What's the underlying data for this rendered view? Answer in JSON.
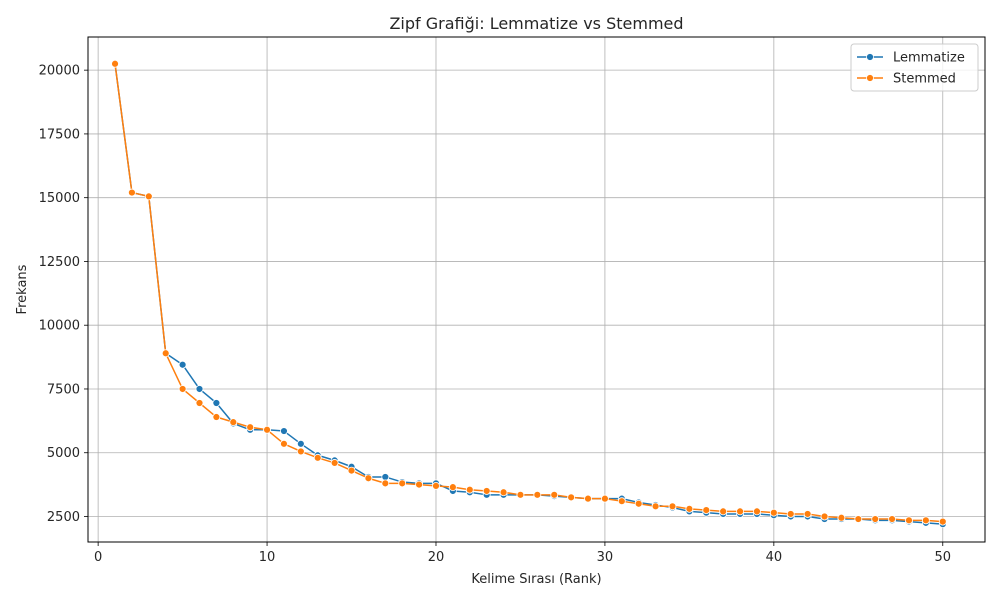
{
  "chart_data": {
    "type": "line",
    "title": "Zipf Grafiği: Lemmatize vs Stemmed",
    "xlabel": "Kelime Sırası (Rank)",
    "ylabel": "Frekans",
    "xlim": [
      -0.6,
      52.5
    ],
    "ylim": [
      1500,
      21300
    ],
    "xticks": [
      0,
      10,
      20,
      30,
      40,
      50
    ],
    "yticks": [
      2500,
      5000,
      7500,
      10000,
      12500,
      15000,
      17500,
      20000
    ],
    "grid": true,
    "legend_position": "top-right",
    "x": [
      1,
      2,
      3,
      4,
      5,
      6,
      7,
      8,
      9,
      10,
      11,
      12,
      13,
      14,
      15,
      16,
      17,
      18,
      19,
      20,
      21,
      22,
      23,
      24,
      25,
      26,
      27,
      28,
      29,
      30,
      31,
      32,
      33,
      34,
      35,
      36,
      37,
      38,
      39,
      40,
      41,
      42,
      43,
      44,
      45,
      46,
      47,
      48,
      49,
      50
    ],
    "series": [
      {
        "name": "Lemmatize",
        "color": "#1f77b4",
        "values": [
          20250,
          15200,
          15050,
          8900,
          8450,
          7500,
          6950,
          6150,
          5900,
          5900,
          5850,
          5350,
          4900,
          4700,
          4450,
          4050,
          4050,
          3850,
          3800,
          3800,
          3500,
          3450,
          3350,
          3350,
          3350,
          3350,
          3300,
          3250,
          3200,
          3200,
          3200,
          3050,
          2950,
          2850,
          2700,
          2650,
          2600,
          2600,
          2600,
          2550,
          2500,
          2500,
          2400,
          2400,
          2400,
          2350,
          2350,
          2300,
          2250,
          2200
        ]
      },
      {
        "name": "Stemmed",
        "color": "#ff7f0e",
        "values": [
          20250,
          15200,
          15050,
          8900,
          7500,
          6950,
          6400,
          6200,
          6000,
          5900,
          5350,
          5050,
          4800,
          4600,
          4300,
          4000,
          3800,
          3800,
          3750,
          3700,
          3650,
          3550,
          3500,
          3450,
          3350,
          3350,
          3350,
          3250,
          3200,
          3200,
          3100,
          3000,
          2900,
          2900,
          2800,
          2750,
          2700,
          2700,
          2700,
          2650,
          2600,
          2600,
          2500,
          2450,
          2400,
          2400,
          2400,
          2350,
          2350,
          2300
        ]
      }
    ]
  }
}
